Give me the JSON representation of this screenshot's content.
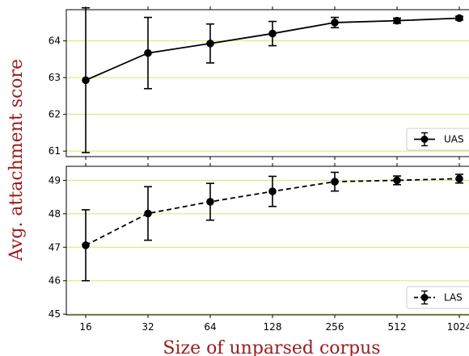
{
  "chart_data": [
    {
      "type": "line",
      "panel": "top",
      "x": [
        16,
        32,
        64,
        128,
        256,
        512,
        1024
      ],
      "x_tick_labels": [
        "16",
        "32",
        "64",
        "128",
        "256",
        "512",
        "1024"
      ],
      "x_scale": "log2",
      "series": [
        {
          "name": "UAS",
          "values": [
            62.93,
            63.67,
            63.93,
            64.2,
            64.5,
            64.55,
            64.62
          ],
          "error": [
            1.97,
            0.97,
            0.53,
            0.33,
            0.14,
            0.07,
            0.05
          ],
          "line_style": "solid",
          "color": "#000000"
        }
      ],
      "ylim": [
        60.85,
        64.85
      ],
      "y_ticks": [
        61,
        62,
        63,
        64
      ],
      "grid": "horizontal",
      "grid_color": "#ccee66",
      "legend_position": "lower-right"
    },
    {
      "type": "line",
      "panel": "bottom",
      "x": [
        16,
        32,
        64,
        128,
        256,
        512,
        1024
      ],
      "x_tick_labels": [
        "16",
        "32",
        "64",
        "128",
        "256",
        "512",
        "1024"
      ],
      "x_scale": "log2",
      "series": [
        {
          "name": "LAS",
          "values": [
            47.06,
            48.01,
            48.36,
            48.67,
            48.96,
            49.0,
            49.05
          ],
          "error": [
            1.06,
            0.8,
            0.55,
            0.45,
            0.28,
            0.13,
            0.13
          ],
          "line_style": "dashed",
          "color": "#000000"
        }
      ],
      "ylim": [
        44.98,
        49.42
      ],
      "y_ticks": [
        45,
        46,
        47,
        48,
        49
      ],
      "grid": "horizontal",
      "grid_color": "#ccee66",
      "legend_position": "lower-right"
    }
  ],
  "axes": {
    "xlabel": "Size of unparsed corpus",
    "ylabel": "Avg. attachment score"
  }
}
